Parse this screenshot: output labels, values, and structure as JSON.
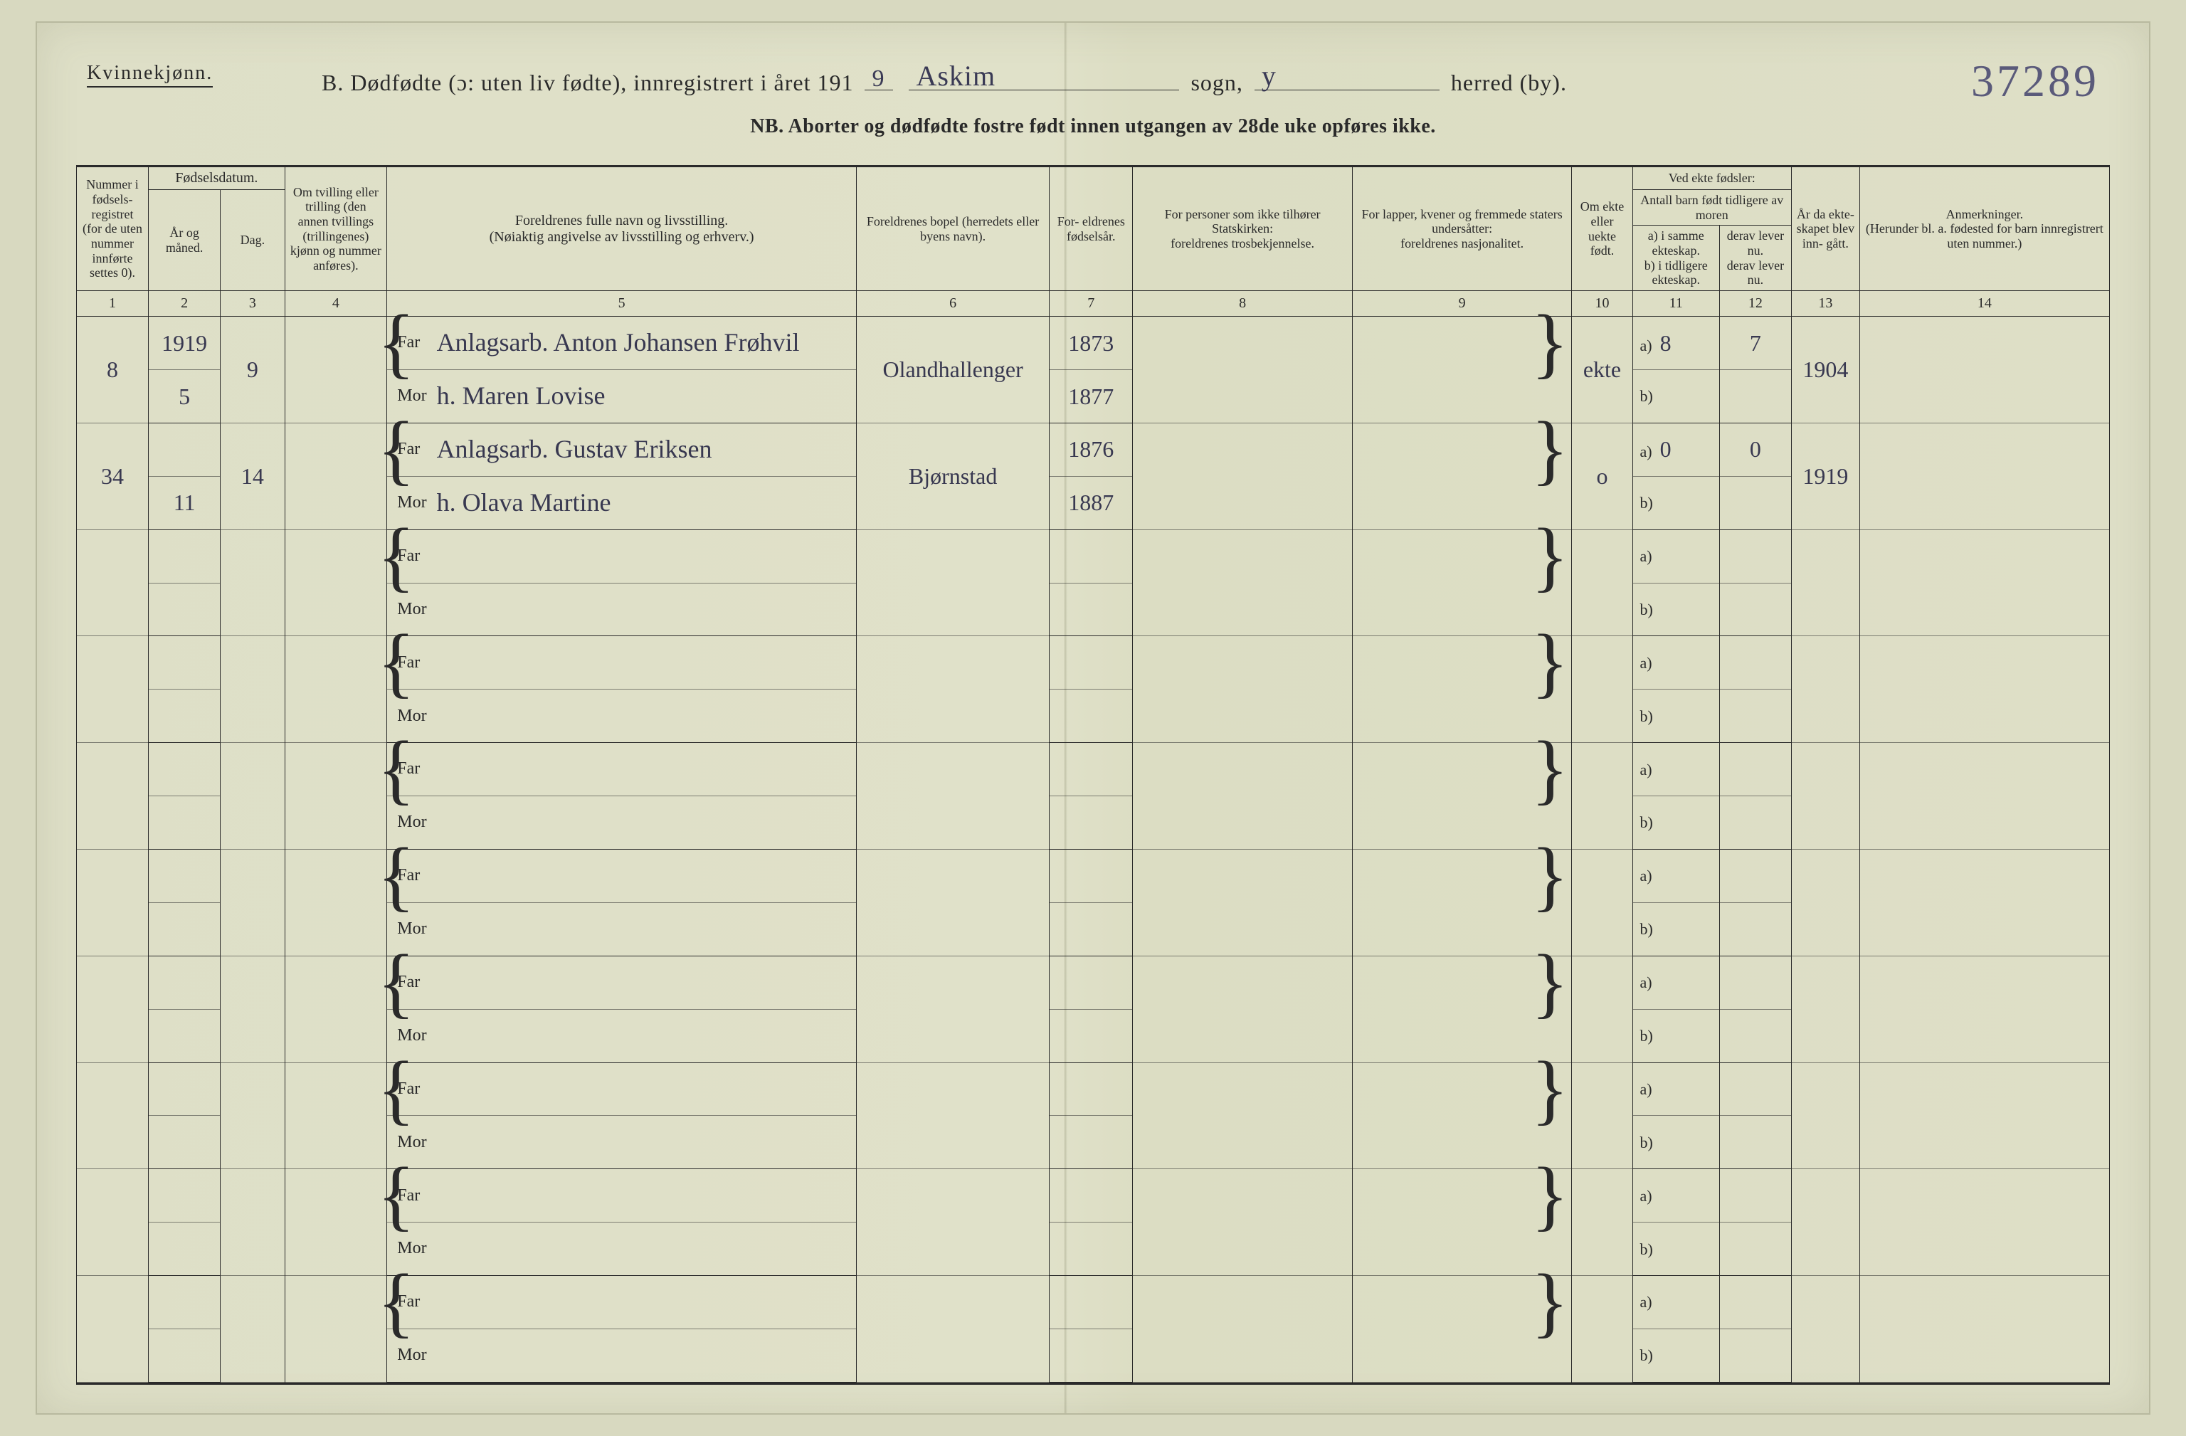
{
  "page": {
    "background_color": "#dedfc7",
    "ink_color": "#2a2a2a",
    "handwriting_color": "#3a3a55"
  },
  "header": {
    "kvinnekjonn": "Kvinnekjønn.",
    "title_prefix": "B. Dødfødte (ɔ: uten liv fødte), innregistrert i året 191",
    "year_digit": "9",
    "sogn_word": "sogn,",
    "sogn_value": "Askim",
    "herred_word": "herred (by).",
    "herred_value": "y",
    "nb": "NB. Aborter og dødfødte fostre født innen utgangen av 28de uke opføres ikke.",
    "ref_number": "37289"
  },
  "columns": {
    "c1": "Nummer i fødsels- registret (for de uten nummer innførte settes 0).",
    "c23": "Fødselsdatum.",
    "c2": "År og måned.",
    "c3": "Dag.",
    "c4": "Om tvilling eller trilling (den annen tvillings (trillingenes) kjønn og nummer anføres).",
    "c5": "Foreldrenes fulle navn og livsstilling.",
    "c5s": "(Nøiaktig angivelse av livsstilling og erhverv.)",
    "c6": "Foreldrenes bopel (herredets eller byens navn).",
    "c7": "For- eldrenes fødselsår.",
    "c8a": "For personer som ikke tilhører Statskirken:",
    "c8b": "foreldrenes trosbekjennelse.",
    "c9a": "For lapper, kvener og fremmede staters undersåtter:",
    "c9b": "foreldrenes nasjonalitet.",
    "c10": "Om ekte eller uekte født.",
    "c1112a": "Ved ekte fødsler:",
    "c1112b": "Antall barn født tidligere av moren",
    "c11": "a) i samme ekteskap.",
    "c11b": "b) i tidligere ekteskap.",
    "c12": "derav lever nu.",
    "c12b": "derav lever nu.",
    "c13": "År da ekte- skapet blev inn- gått.",
    "c14": "Anmerkninger.",
    "c14s": "(Herunder bl. a. fødested for barn innregistrert uten nummer.)",
    "far": "Far",
    "mor": "Mor",
    "a_lbl": "a)",
    "b_lbl": "b)",
    "nums": {
      "n1": "1",
      "n2": "2",
      "n3": "3",
      "n4": "4",
      "n5": "5",
      "n6": "6",
      "n7": "7",
      "n8": "8",
      "n9": "9",
      "n10": "10",
      "n11": "11",
      "n12": "12",
      "n13": "13",
      "n14": "14"
    }
  },
  "rows": [
    {
      "reg_no": "8",
      "year": "1919",
      "year_month": "5",
      "day": "9",
      "twin": "",
      "far_name": "Anlagsarb. Anton Johansen Frøhvil",
      "mor_name": "h. Maren Lovise",
      "bopel": "Olandhallenger",
      "far_birth": "1873",
      "mor_birth": "1877",
      "c8": "",
      "c9": "",
      "ekte": "ekte",
      "a_same": "8",
      "a_prev": "",
      "lever_a": "7",
      "lever_b": "",
      "marriage_year": "1904",
      "remarks": ""
    },
    {
      "reg_no": "34",
      "year": "",
      "year_month": "11",
      "day": "14",
      "twin": "",
      "far_name": "Anlagsarb. Gustav Eriksen",
      "mor_name": "h. Olava Martine",
      "bopel": "Bjørnstad",
      "far_birth": "1876",
      "mor_birth": "1887",
      "c8": "",
      "c9": "",
      "ekte": "o",
      "a_same": "0",
      "a_prev": "",
      "lever_a": "0",
      "lever_b": "",
      "marriage_year": "1919",
      "remarks": ""
    },
    {
      "reg_no": "",
      "year": "",
      "year_month": "",
      "day": "",
      "twin": "",
      "far_name": "",
      "mor_name": "",
      "bopel": "",
      "far_birth": "",
      "mor_birth": "",
      "c8": "",
      "c9": "",
      "ekte": "",
      "a_same": "",
      "a_prev": "",
      "lever_a": "",
      "lever_b": "",
      "marriage_year": "",
      "remarks": ""
    },
    {
      "reg_no": "",
      "year": "",
      "year_month": "",
      "day": "",
      "twin": "",
      "far_name": "",
      "mor_name": "",
      "bopel": "",
      "far_birth": "",
      "mor_birth": "",
      "c8": "",
      "c9": "",
      "ekte": "",
      "a_same": "",
      "a_prev": "",
      "lever_a": "",
      "lever_b": "",
      "marriage_year": "",
      "remarks": ""
    },
    {
      "reg_no": "",
      "year": "",
      "year_month": "",
      "day": "",
      "twin": "",
      "far_name": "",
      "mor_name": "",
      "bopel": "",
      "far_birth": "",
      "mor_birth": "",
      "c8": "",
      "c9": "",
      "ekte": "",
      "a_same": "",
      "a_prev": "",
      "lever_a": "",
      "lever_b": "",
      "marriage_year": "",
      "remarks": ""
    },
    {
      "reg_no": "",
      "year": "",
      "year_month": "",
      "day": "",
      "twin": "",
      "far_name": "",
      "mor_name": "",
      "bopel": "",
      "far_birth": "",
      "mor_birth": "",
      "c8": "",
      "c9": "",
      "ekte": "",
      "a_same": "",
      "a_prev": "",
      "lever_a": "",
      "lever_b": "",
      "marriage_year": "",
      "remarks": ""
    },
    {
      "reg_no": "",
      "year": "",
      "year_month": "",
      "day": "",
      "twin": "",
      "far_name": "",
      "mor_name": "",
      "bopel": "",
      "far_birth": "",
      "mor_birth": "",
      "c8": "",
      "c9": "",
      "ekte": "",
      "a_same": "",
      "a_prev": "",
      "lever_a": "",
      "lever_b": "",
      "marriage_year": "",
      "remarks": ""
    },
    {
      "reg_no": "",
      "year": "",
      "year_month": "",
      "day": "",
      "twin": "",
      "far_name": "",
      "mor_name": "",
      "bopel": "",
      "far_birth": "",
      "mor_birth": "",
      "c8": "",
      "c9": "",
      "ekte": "",
      "a_same": "",
      "a_prev": "",
      "lever_a": "",
      "lever_b": "",
      "marriage_year": "",
      "remarks": ""
    },
    {
      "reg_no": "",
      "year": "",
      "year_month": "",
      "day": "",
      "twin": "",
      "far_name": "",
      "mor_name": "",
      "bopel": "",
      "far_birth": "",
      "mor_birth": "",
      "c8": "",
      "c9": "",
      "ekte": "",
      "a_same": "",
      "a_prev": "",
      "lever_a": "",
      "lever_b": "",
      "marriage_year": "",
      "remarks": ""
    },
    {
      "reg_no": "",
      "year": "",
      "year_month": "",
      "day": "",
      "twin": "",
      "far_name": "",
      "mor_name": "",
      "bopel": "",
      "far_birth": "",
      "mor_birth": "",
      "c8": "",
      "c9": "",
      "ekte": "",
      "a_same": "",
      "a_prev": "",
      "lever_a": "",
      "lever_b": "",
      "marriage_year": "",
      "remarks": ""
    }
  ]
}
